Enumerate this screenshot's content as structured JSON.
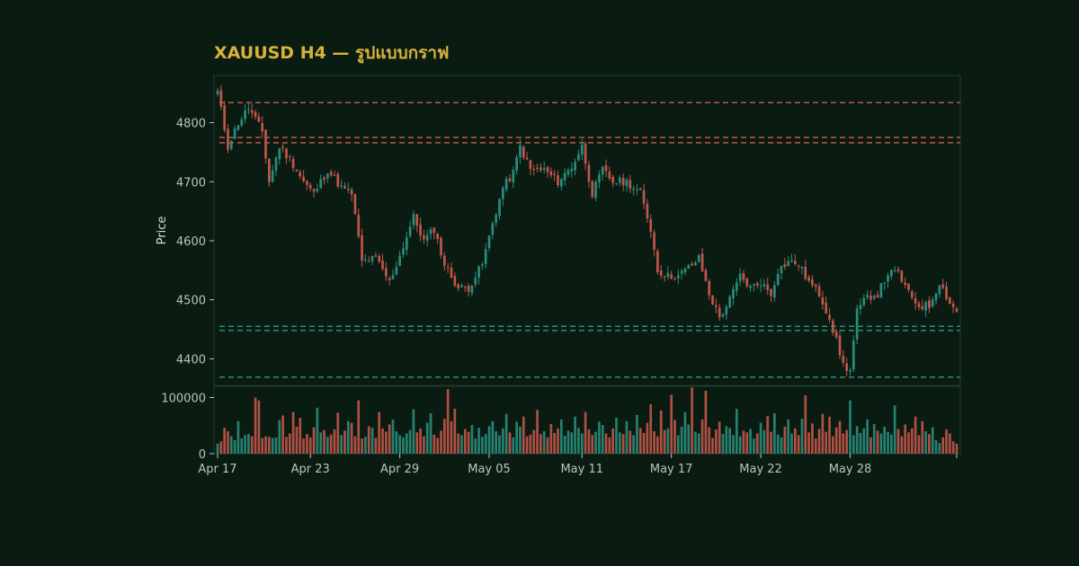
{
  "title": "XAUUSD H4 — รูปแบบกราฟ",
  "colors": {
    "background": "#0a1c12",
    "panel_border": "#1f3a30",
    "up": "#2a8c7c",
    "down": "#c2554a",
    "title": "#d9b13b",
    "axis_text": "#b9c3bd",
    "resistance": "#c2554a",
    "support": "#2a8c7c"
  },
  "chart_data": {
    "type": "candlestick",
    "symbol": "XAUUSD",
    "timeframe": "H4",
    "ylabel": "Price",
    "ylim": [
      4355,
      4880
    ],
    "yticks": [
      4400,
      4500,
      4600,
      4700,
      4800
    ],
    "volume_ylim": [
      0,
      120000
    ],
    "volume_yticks": [
      0,
      100000
    ],
    "x_tick_labels": [
      "Apr 17",
      "Apr 23",
      "Apr 29",
      "May 05",
      "May 11",
      "May 17",
      "May 22",
      "May 28"
    ],
    "x_tick_bar_index": [
      0,
      27,
      53,
      79,
      106,
      132,
      158,
      184
    ],
    "resistance_levels": [
      4834,
      4775,
      4766
    ],
    "support_levels": [
      4455,
      4448,
      4369
    ],
    "anchors": [
      [
        0,
        4852
      ],
      [
        3,
        4760
      ],
      [
        6,
        4800
      ],
      [
        9,
        4825
      ],
      [
        13,
        4785
      ],
      [
        15,
        4700
      ],
      [
        18,
        4760
      ],
      [
        22,
        4730
      ],
      [
        25,
        4700
      ],
      [
        28,
        4680
      ],
      [
        32,
        4720
      ],
      [
        36,
        4690
      ],
      [
        39,
        4680
      ],
      [
        42,
        4565
      ],
      [
        46,
        4570
      ],
      [
        50,
        4530
      ],
      [
        53,
        4575
      ],
      [
        57,
        4640
      ],
      [
        60,
        4600
      ],
      [
        63,
        4620
      ],
      [
        66,
        4560
      ],
      [
        70,
        4520
      ],
      [
        73,
        4520
      ],
      [
        77,
        4560
      ],
      [
        80,
        4630
      ],
      [
        83,
        4690
      ],
      [
        86,
        4715
      ],
      [
        88,
        4760
      ],
      [
        91,
        4720
      ],
      [
        95,
        4720
      ],
      [
        99,
        4700
      ],
      [
        103,
        4725
      ],
      [
        106,
        4760
      ],
      [
        109,
        4680
      ],
      [
        112,
        4720
      ],
      [
        115,
        4700
      ],
      [
        119,
        4700
      ],
      [
        123,
        4680
      ],
      [
        126,
        4620
      ],
      [
        128,
        4550
      ],
      [
        131,
        4540
      ],
      [
        134,
        4540
      ],
      [
        137,
        4555
      ],
      [
        140,
        4570
      ],
      [
        143,
        4510
      ],
      [
        146,
        4470
      ],
      [
        149,
        4500
      ],
      [
        152,
        4540
      ],
      [
        155,
        4520
      ],
      [
        158,
        4530
      ],
      [
        161,
        4510
      ],
      [
        163,
        4550
      ],
      [
        166,
        4565
      ],
      [
        169,
        4560
      ],
      [
        172,
        4530
      ],
      [
        175,
        4510
      ],
      [
        178,
        4470
      ],
      [
        180,
        4430
      ],
      [
        182,
        4390
      ],
      [
        184,
        4380
      ],
      [
        186,
        4480
      ],
      [
        189,
        4505
      ],
      [
        192,
        4510
      ],
      [
        195,
        4545
      ],
      [
        198,
        4545
      ],
      [
        201,
        4510
      ],
      [
        204,
        4490
      ],
      [
        207,
        4490
      ],
      [
        210,
        4530
      ],
      [
        213,
        4495
      ],
      [
        215,
        4480
      ]
    ],
    "volume_profile": [
      18,
      22,
      46,
      40,
      31,
      24,
      58,
      27,
      33,
      35,
      31,
      100,
      95,
      28,
      31,
      30,
      28,
      29,
      60,
      68,
      30,
      36,
      74,
      48,
      64,
      27,
      35,
      29,
      47,
      82,
      38,
      42,
      30,
      34,
      43,
      73,
      33,
      41,
      58,
      55,
      31,
      95,
      27,
      30,
      49,
      46,
      28,
      74,
      45,
      39,
      52,
      61,
      40,
      33,
      29,
      36,
      42,
      79,
      38,
      45,
      31,
      55,
      72,
      34,
      28,
      41,
      62,
      115,
      58,
      80,
      36,
      33,
      44,
      39,
      51,
      27,
      46,
      30,
      35,
      49,
      58,
      40,
      33,
      45,
      71,
      38,
      29,
      57,
      48,
      66,
      31,
      34,
      42,
      78,
      35,
      40,
      29,
      53,
      37,
      45,
      61,
      32,
      41,
      38,
      66,
      46,
      36,
      74,
      43,
      33,
      39,
      57,
      51,
      36,
      29,
      45,
      64,
      38,
      35,
      58,
      41,
      33,
      69,
      46,
      37,
      55,
      88,
      40,
      31,
      77,
      42,
      45,
      105,
      60,
      33,
      48,
      74,
      52,
      118,
      39,
      36,
      61,
      112,
      47,
      28,
      43,
      57,
      35,
      49,
      46,
      33,
      80,
      31,
      41,
      38,
      44,
      27,
      36,
      55,
      42,
      67,
      39,
      72,
      34,
      29,
      48,
      61,
      36,
      45,
      33,
      62,
      104,
      38,
      54,
      27,
      44,
      71,
      39,
      66,
      31,
      47,
      58,
      36,
      42,
      95,
      33,
      49,
      37,
      45,
      61,
      29,
      53,
      41,
      36,
      48,
      39,
      34,
      86,
      44,
      31,
      52,
      38,
      45,
      66,
      33,
      58,
      40,
      35,
      47,
      24,
      19,
      29,
      43,
      36,
      22
    ]
  }
}
